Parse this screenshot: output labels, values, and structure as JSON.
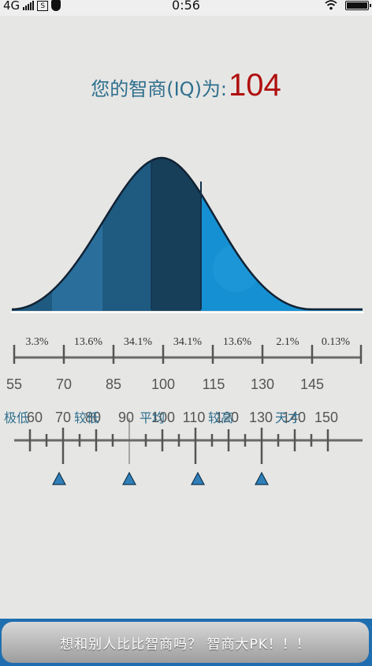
{
  "status_bar": {
    "network": "4G",
    "sim_label": "S",
    "time": "0:56",
    "icons": [
      "signal-icon",
      "sim-icon",
      "shield-icon",
      "wifi-icon",
      "battery-icon"
    ]
  },
  "header": {
    "label": "您的智商(IQ)为:",
    "score": "104"
  },
  "distribution": {
    "percentages": [
      "3.3%",
      "13.6%",
      "34.1%",
      "34.1%",
      "13.6%",
      "2.1%",
      "0.13%"
    ],
    "scale": [
      "55",
      "70",
      "85",
      "100",
      "115",
      "130",
      "145"
    ]
  },
  "classification_scale": {
    "numbers": [
      "60",
      "70",
      "80",
      "90",
      "100",
      "110",
      "120",
      "130",
      "140",
      "150"
    ],
    "categories": [
      "极低",
      "较低",
      "平均",
      "较高",
      "天才"
    ],
    "markers": [
      70,
      90,
      110,
      130
    ]
  },
  "colors": {
    "curve_dark": "#173f5a",
    "curve_mid": "#1f5a80",
    "curve_light": "#2a6f9c",
    "curve_bright": "#1590d3",
    "score": "#b01010",
    "label": "#2f6f8e"
  },
  "footer": {
    "pk_button": "想和别人比比智商吗？ 智商大PK！！！"
  }
}
